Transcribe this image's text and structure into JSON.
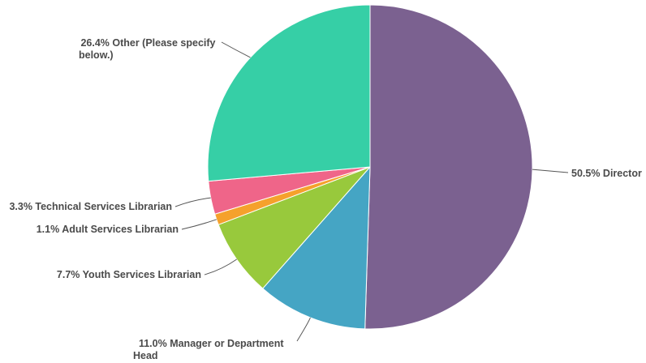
{
  "chart_data": {
    "type": "pie",
    "slices": [
      {
        "label": "Director",
        "value": 50.5,
        "display": "50.5% Director",
        "color": "#7b6190"
      },
      {
        "label": "Manager or Department Head",
        "value": 11.0,
        "display_lines": [
          "11.0% Manager or Department",
          "Head"
        ],
        "color": "#45a5c4"
      },
      {
        "label": "Youth Services Librarian",
        "value": 7.7,
        "display": "7.7% Youth Services Librarian",
        "color": "#98c93c"
      },
      {
        "label": "Adult Services Librarian",
        "value": 1.1,
        "display": "1.1% Adult Services Librarian",
        "color": "#f5a12c"
      },
      {
        "label": "Technical Services Librarian",
        "value": 3.3,
        "display": "3.3% Technical Services Librarian",
        "color": "#ef6589"
      },
      {
        "label": "Other (Please specify below.)",
        "value": 26.4,
        "display_lines": [
          "26.4% Other (Please specify",
          "below.)"
        ],
        "color": "#36cfa6"
      }
    ],
    "start_angle": "12 o'clock",
    "direction": "clockwise",
    "legend": "none"
  }
}
